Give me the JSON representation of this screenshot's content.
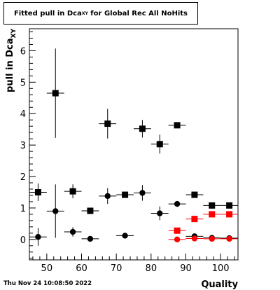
{
  "title": {
    "prefix": "Fitted pull in Dca",
    "subscript": "XY",
    "suffix": " for Global Rec All NoHits"
  },
  "footer": {
    "timestamp": "Thu Nov 24 10:08:50 2022"
  },
  "colors": {
    "black": "#000000",
    "red": "#ff0000",
    "background": "#ffffff"
  },
  "chart_data": {
    "type": "scatter",
    "xlabel": "Quality",
    "ylabel": "pull in Dca",
    "ylabel_subscript": "XY",
    "xlim": [
      45,
      105
    ],
    "ylim": [
      -0.65,
      6.7
    ],
    "x_ticks": [
      50,
      60,
      70,
      80,
      90,
      100
    ],
    "y_ticks": [
      0,
      1,
      2,
      3,
      4,
      5,
      6
    ],
    "grid": false,
    "series": [
      {
        "marker": "square",
        "color": "#000000",
        "points": [
          {
            "x": 47.5,
            "y": 1.5,
            "err": 0.28
          },
          {
            "x": 52.5,
            "y": 4.65,
            "err": 1.42
          },
          {
            "x": 57.5,
            "y": 1.53,
            "err": 0.22
          },
          {
            "x": 62.5,
            "y": 0.91,
            "err": 0.06
          },
          {
            "x": 67.5,
            "y": 3.68,
            "err": 0.47
          },
          {
            "x": 72.5,
            "y": 1.42,
            "err": 0.08
          },
          {
            "x": 77.5,
            "y": 3.52,
            "err": 0.28
          },
          {
            "x": 82.5,
            "y": 3.03,
            "err": 0.3
          },
          {
            "x": 87.5,
            "y": 3.63,
            "err": 0.08
          },
          {
            "x": 92.5,
            "y": 1.42,
            "err": 0.05
          },
          {
            "x": 97.5,
            "y": 1.08,
            "err": 0.03
          },
          {
            "x": 102.5,
            "y": 1.08,
            "err": 0.03
          }
        ]
      },
      {
        "marker": "circle",
        "color": "#000000",
        "points": [
          {
            "x": 47.5,
            "y": 0.08,
            "err": 0.28
          },
          {
            "x": 52.5,
            "y": 0.9,
            "err": 0.85
          },
          {
            "x": 57.5,
            "y": 0.24,
            "err": 0.15
          },
          {
            "x": 62.5,
            "y": 0.02,
            "err": 0.05
          },
          {
            "x": 67.5,
            "y": 1.38,
            "err": 0.25
          },
          {
            "x": 72.5,
            "y": 0.12,
            "err": 0.07
          },
          {
            "x": 77.5,
            "y": 1.48,
            "err": 0.25
          },
          {
            "x": 82.5,
            "y": 0.83,
            "err": 0.22
          },
          {
            "x": 87.5,
            "y": 1.13,
            "err": 0.07
          },
          {
            "x": 92.5,
            "y": 0.1,
            "err": 0.04
          },
          {
            "x": 97.5,
            "y": 0.05,
            "err": 0.03
          },
          {
            "x": 102.5,
            "y": 0.04,
            "err": 0.03
          }
        ]
      },
      {
        "marker": "square",
        "color": "#ff0000",
        "points": [
          {
            "x": 87.5,
            "y": 0.28,
            "err": 0.03
          },
          {
            "x": 92.5,
            "y": 0.65,
            "err": 0.03
          },
          {
            "x": 97.5,
            "y": 0.8,
            "err": 0.02
          },
          {
            "x": 102.5,
            "y": 0.8,
            "err": 0.02
          }
        ]
      },
      {
        "marker": "circle",
        "color": "#ff0000",
        "points": [
          {
            "x": 87.5,
            "y": 0.0,
            "err": 0.02
          },
          {
            "x": 92.5,
            "y": 0.03,
            "err": 0.02
          },
          {
            "x": 97.5,
            "y": 0.02,
            "err": 0.02
          },
          {
            "x": 102.5,
            "y": 0.02,
            "err": 0.02
          }
        ]
      }
    ]
  }
}
